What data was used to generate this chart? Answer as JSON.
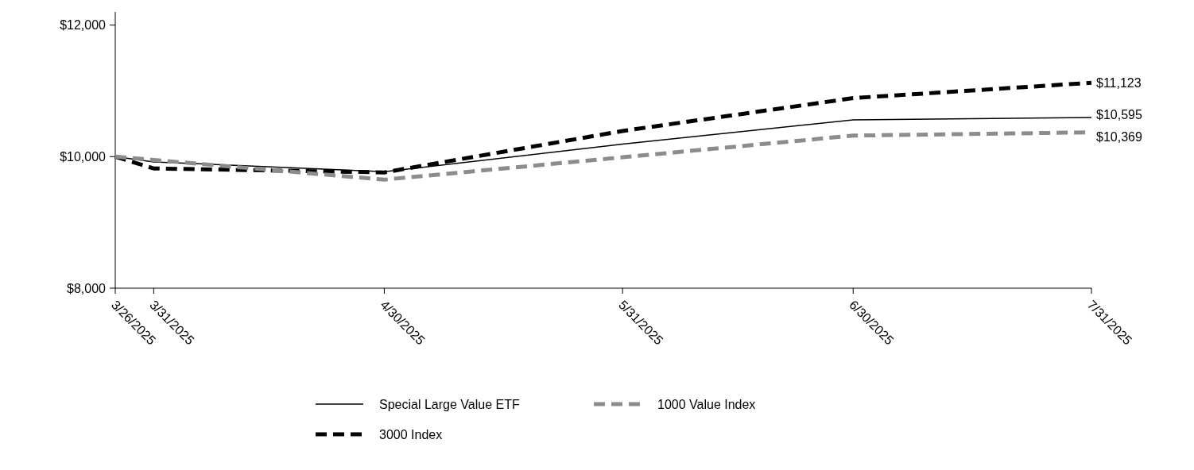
{
  "chart_data": {
    "type": "line",
    "x": [
      "2025-03-26",
      "2025-03-31",
      "2025-04-30",
      "2025-05-31",
      "2025-06-30",
      "2025-07-31"
    ],
    "series": [
      {
        "name": "Special Large Value ETF",
        "color": "#000000",
        "line_style": "solid",
        "values": [
          10000,
          9920,
          9770,
          10190,
          10560,
          10595
        ]
      },
      {
        "name": "1000 Value Index",
        "color": "#8c8c8c",
        "line_style": "dashed",
        "values": [
          10000,
          9950,
          9650,
          9990,
          10320,
          10369
        ]
      },
      {
        "name": "3000 Index",
        "color": "#000000",
        "line_style": "dashed",
        "values": [
          10000,
          9820,
          9760,
          10390,
          10890,
          11123
        ]
      }
    ],
    "xlim": [
      "2025-03-26",
      "2025-07-31"
    ],
    "xticks": [
      {
        "value": "2025-03-26",
        "label": "3/26/2025"
      },
      {
        "value": "2025-03-31",
        "label": "3/31/2025"
      },
      {
        "value": "2025-04-30",
        "label": "4/30/2025"
      },
      {
        "value": "2025-05-31",
        "label": "5/31/2025"
      },
      {
        "value": "2025-06-30",
        "label": "6/30/2025"
      },
      {
        "value": "2025-07-31",
        "label": "7/31/2025"
      }
    ],
    "ylim": [
      8000,
      12200
    ],
    "yticks": [
      {
        "value": 8000,
        "label": "$8,000"
      },
      {
        "value": 10000,
        "label": "$10,000"
      },
      {
        "value": 12000,
        "label": "$12,000"
      }
    ],
    "annotations": [
      {
        "text": "$11,123",
        "x": "2025-07-31",
        "y": 11123
      },
      {
        "text": "$10,595",
        "x": "2025-07-31",
        "y": 10595
      },
      {
        "text": "$10,369",
        "x": "2025-07-31",
        "y": 10369
      }
    ],
    "grid": false,
    "legend": "bottom",
    "marker": "none"
  }
}
